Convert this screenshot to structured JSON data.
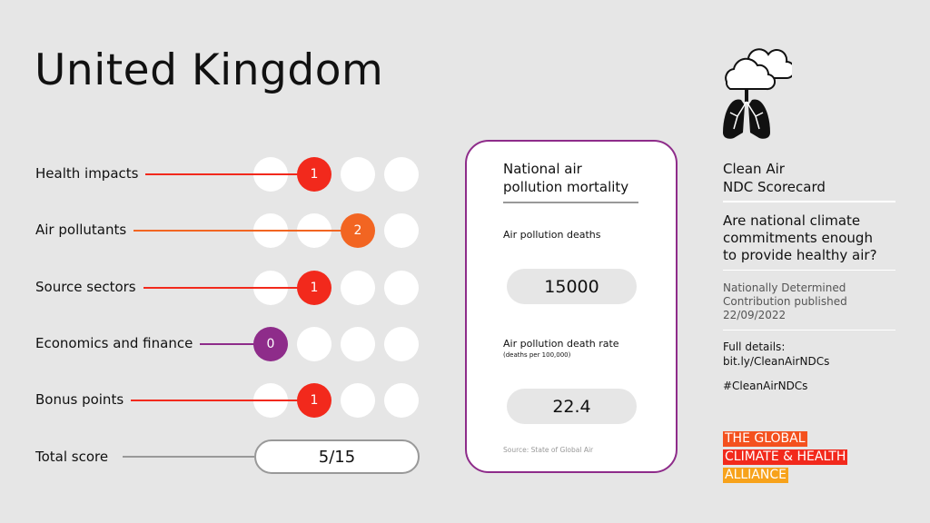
{
  "title": "United Kingdom",
  "colors": {
    "red": "#f2291c",
    "orange": "#f26522",
    "purple": "#8e2c8a",
    "line_gray": "#999999"
  },
  "rows": [
    {
      "label": "Health impacts",
      "score": 1,
      "max": 3,
      "color": "#f2291c"
    },
    {
      "label": "Air pollutants",
      "score": 2,
      "max": 3,
      "color": "#f26522"
    },
    {
      "label": "Source sectors",
      "score": 1,
      "max": 3,
      "color": "#f2291c"
    },
    {
      "label": "Economics and finance",
      "score": 0,
      "max": 3,
      "color": "#8e2c8a"
    },
    {
      "label": "Bonus points",
      "score": 1,
      "max": 3,
      "color": "#f2291c"
    }
  ],
  "total": {
    "label": "Total score",
    "value": "5/15"
  },
  "card": {
    "title_line1": "National air",
    "title_line2": "pollution mortality",
    "deaths_label": "Air pollution deaths",
    "deaths_value": "15000",
    "rate_label": "Air pollution death rate",
    "rate_sub": "(deaths per 100,000)",
    "rate_value": "22.4",
    "source": "Source: State of Global Air"
  },
  "side": {
    "icon": "cloud-lungs-icon",
    "heading1": "Clean Air",
    "heading2": "NDC Scorecard",
    "question1": "Are national climate",
    "question2": "commitments enough",
    "question3": "to provide healthy air?",
    "ndc1": "Nationally Determined",
    "ndc2": "Contribution published",
    "ndc3": "22/09/2022",
    "details1": "Full details:",
    "details2": "bit.ly/CleanAirNDCs",
    "hashtag": "#CleanAirNDCs"
  },
  "logo": {
    "line1": "THE GLOBAL",
    "line2": "CLIMATE & HEALTH",
    "line3": "ALLIANCE",
    "colors": [
      "#f4511e",
      "#f2291c",
      "#f7a21b"
    ]
  }
}
